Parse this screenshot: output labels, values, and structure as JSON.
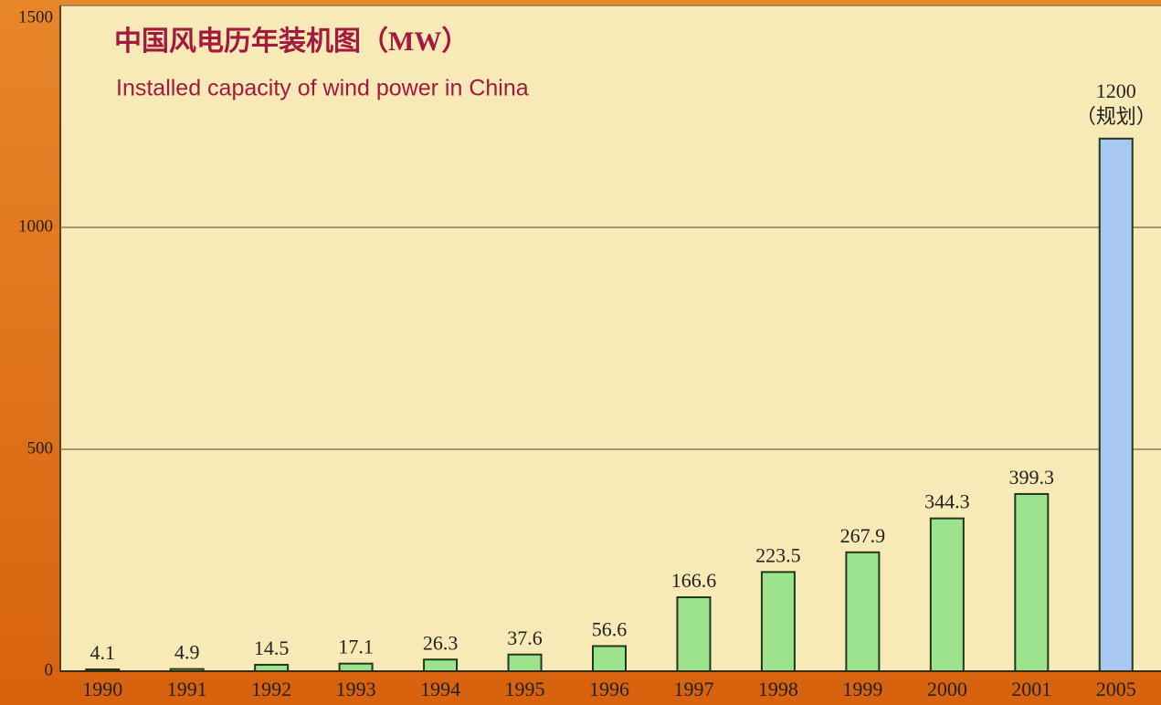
{
  "chart_data": {
    "type": "bar",
    "title": "中国风电历年装机图（MW）",
    "subtitle": "Installed capacity of wind power in China",
    "categories": [
      "1990",
      "1991",
      "1992",
      "1993",
      "1994",
      "1995",
      "1996",
      "1997",
      "1998",
      "1999",
      "2000",
      "2001",
      "2005"
    ],
    "values": [
      4.1,
      4.9,
      14.5,
      17.1,
      26.3,
      37.6,
      56.6,
      166.6,
      223.5,
      267.9,
      344.3,
      399.3,
      1200
    ],
    "colors": [
      "#9de38e",
      "#9de38e",
      "#9de38e",
      "#9de38e",
      "#9de38e",
      "#9de38e",
      "#9de38e",
      "#9de38e",
      "#9de38e",
      "#9de38e",
      "#9de38e",
      "#9de38e",
      "#a8c8f2"
    ],
    "annotation": "（规划）",
    "ylim": [
      0,
      1500
    ],
    "yticks": [
      0,
      500,
      1000,
      1500
    ],
    "grid": true
  }
}
